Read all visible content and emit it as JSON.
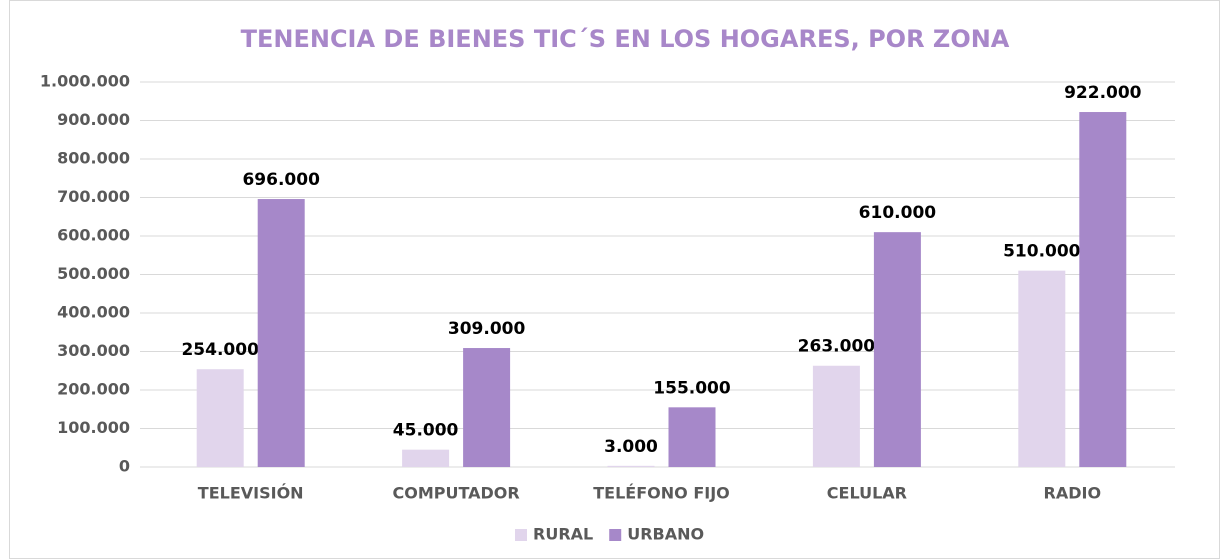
{
  "chart_data": {
    "type": "bar",
    "title": "TENENCIA DE BIENES TIC´S EN LOS HOGARES, POR ZONA",
    "categories": [
      "TELEVISIÓN",
      "COMPUTADOR",
      "TELÉFONO FIJO",
      "CELULAR",
      "RADIO"
    ],
    "series": [
      {
        "name": "RURAL",
        "color": "#e1d5ec",
        "values": [
          254000,
          45000,
          3000,
          263000,
          510000
        ],
        "value_labels": [
          "254.000",
          "45.000",
          "3.000",
          "263.000",
          "510.000"
        ]
      },
      {
        "name": "URBANO",
        "color": "#a688c9",
        "values": [
          696000,
          309000,
          155000,
          610000,
          922000
        ],
        "value_labels": [
          "696.000",
          "309.000",
          "155.000",
          "610.000",
          "922.000"
        ]
      }
    ],
    "ylim": [
      0,
      1000000
    ],
    "yticks": [
      0,
      {
        "value": 100000,
        "label": "100.000"
      },
      {
        "value": 200000,
        "label": "200.000"
      },
      {
        "value": 300000,
        "label": "300.000"
      },
      {
        "value": 400000,
        "label": "400.000"
      },
      {
        "value": 500000,
        "label": "500.000"
      },
      {
        "value": 600000,
        "label": "600.000"
      },
      {
        "value": 700000,
        "label": "700.000"
      },
      {
        "value": 800000,
        "label": "800.000"
      },
      {
        "value": 900000,
        "label": "900.000"
      },
      {
        "value": 1000000,
        "label": "1.000.000"
      }
    ],
    "grid": true,
    "legend": "bottom"
  }
}
